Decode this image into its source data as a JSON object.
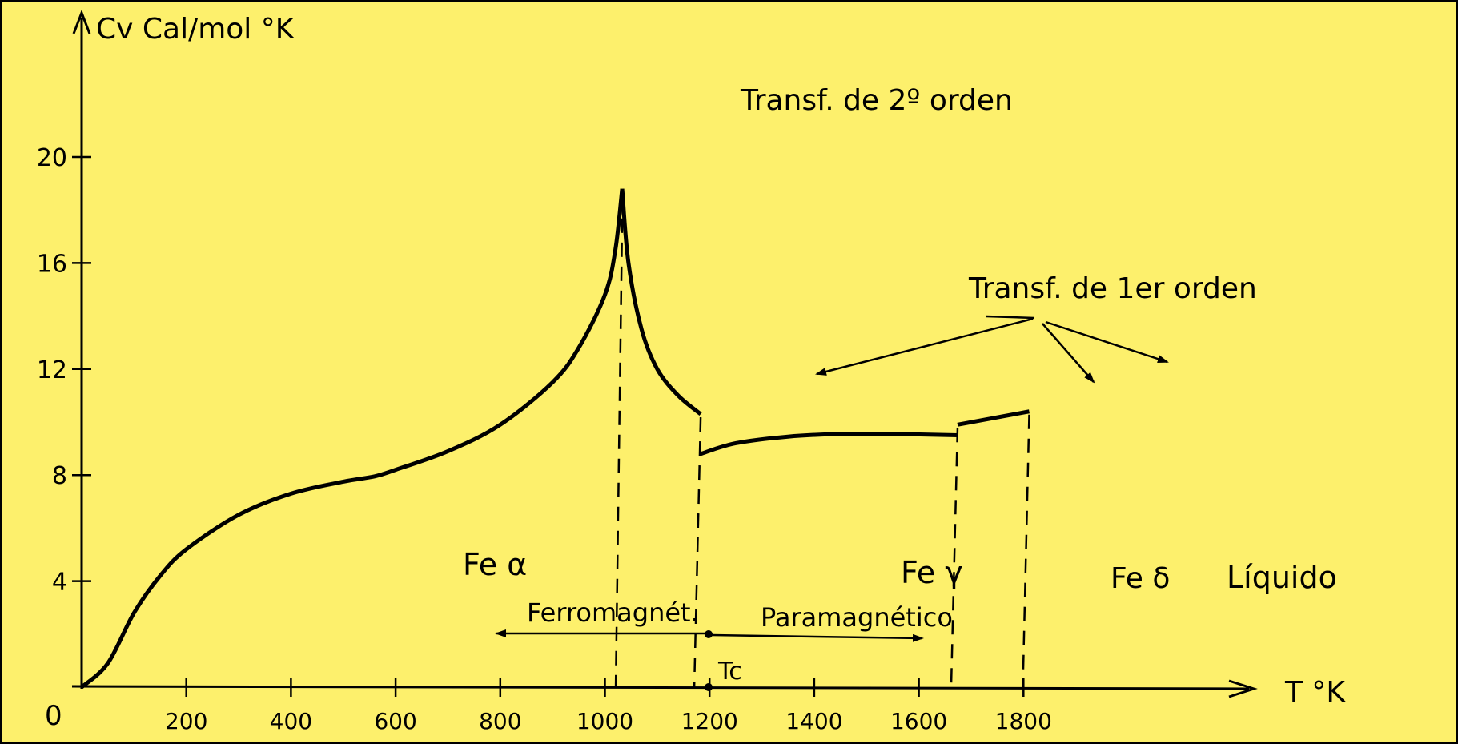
{
  "colors": {
    "background": "#fdf06c",
    "ink": "#000000"
  },
  "chart_data": {
    "type": "line",
    "title": "",
    "ylabel": "Cv Cal/mol °K",
    "xlabel": "T °K",
    "origin_label": "0",
    "xlim": [
      0,
      1900
    ],
    "ylim": [
      0,
      21
    ],
    "x_ticks": [
      200,
      400,
      600,
      800,
      1000,
      1200,
      1400,
      1600,
      1800
    ],
    "y_ticks": [
      4,
      8,
      12,
      16,
      20
    ],
    "y_tick_labels": [
      "4",
      "8",
      "12",
      "16",
      "20"
    ],
    "grid": false,
    "series": [
      {
        "segment": "Fe alpha",
        "x": [
          0,
          50,
          100,
          150,
          200,
          300,
          400,
          500,
          560,
          600,
          700,
          800,
          900,
          950,
          1000,
          1020,
          1033
        ],
        "y": [
          0,
          0.9,
          2.8,
          4.2,
          5.2,
          6.5,
          7.3,
          7.75,
          7.95,
          8.2,
          8.9,
          9.9,
          11.5,
          12.8,
          14.8,
          16.5,
          18.8
        ]
      },
      {
        "segment": "Fe alpha (paramagnetic)",
        "x": [
          1033,
          1045,
          1070,
          1100,
          1140,
          1183
        ],
        "y": [
          18.8,
          16.0,
          13.5,
          12.0,
          11.0,
          10.3
        ]
      },
      {
        "segment": "Fe gamma",
        "x": [
          1183,
          1250,
          1350,
          1450,
          1550,
          1674
        ],
        "y": [
          8.8,
          9.2,
          9.45,
          9.55,
          9.55,
          9.5
        ]
      },
      {
        "segment": "Fe delta",
        "x": [
          1674,
          1811
        ],
        "y": [
          9.9,
          10.4
        ]
      }
    ],
    "transitions": [
      {
        "name": "Tc",
        "x": 1033
      },
      {
        "name": "alpha-gamma",
        "x": 1183
      },
      {
        "name": "gamma-delta",
        "x": 1674
      },
      {
        "name": "melting",
        "x": 1811
      }
    ],
    "annotations": {
      "second_order": "Transf. de 2º orden",
      "first_order": "Transf. de 1er orden",
      "fe_alpha": "Fe α",
      "fe_gamma": "Fe γ",
      "fe_delta": "Fe δ",
      "liquid": "Líquido",
      "ferromagnetic": "Ferromagnét.",
      "paramagnetic": "Paramagnético",
      "tc": "Tc"
    }
  }
}
